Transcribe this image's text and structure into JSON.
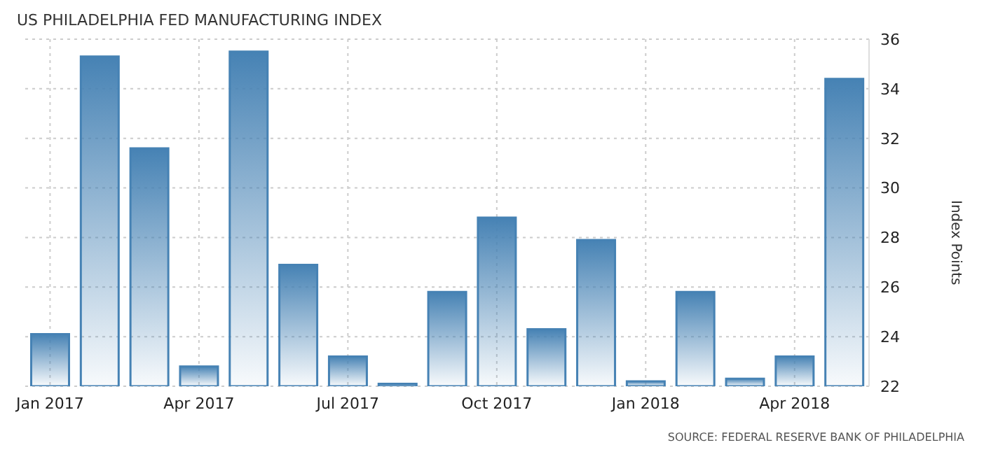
{
  "chart_data": {
    "type": "bar",
    "title": "US PHILADELPHIA FED MANUFACTURING INDEX",
    "ylabel": "Index Points",
    "annotations": [
      "SOURCE: FEDERAL RESERVE BANK OF PHILADELPHIA"
    ],
    "categories": [
      "Jan 2017",
      null,
      null,
      "Apr 2017",
      null,
      null,
      "Jul 2017",
      null,
      null,
      "Oct 2017",
      null,
      null,
      "Jan 2018",
      null,
      null,
      "Apr 2018",
      null
    ],
    "values": [
      24.1,
      35.3,
      31.6,
      22.8,
      35.5,
      26.9,
      23.2,
      22.1,
      25.8,
      28.8,
      24.3,
      27.9,
      22.2,
      25.8,
      22.3,
      23.2,
      34.4
    ],
    "color": "#4682b4",
    "ylim": [
      22,
      36
    ],
    "yticks": [
      22,
      24,
      26,
      28,
      30,
      32,
      34,
      36
    ],
    "grid": true,
    "legend": false
  }
}
